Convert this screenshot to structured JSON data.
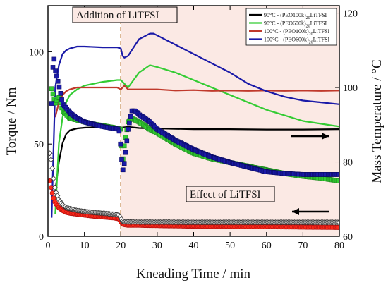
{
  "chart_data": {
    "type": "scatter",
    "xlabel": "Kneading Time / min",
    "ylabel_left": "Torque / Nm",
    "ylabel_right": "Mass Temperature / °C",
    "xlim": [
      0,
      80
    ],
    "ylim_left": [
      0,
      125
    ],
    "ylim_right": [
      60,
      122
    ],
    "xticks": [
      0,
      10,
      20,
      30,
      40,
      50,
      60,
      70,
      80
    ],
    "yticks_left": [
      0,
      50,
      100
    ],
    "yticks_right": [
      60,
      80,
      100,
      120
    ],
    "addition_time": 20,
    "annotations": [
      {
        "text": "Addition of LiTFSI",
        "x": 7,
        "y": 118
      },
      {
        "text": "Effect of LiTFSI",
        "x": 37,
        "y": 22
      }
    ],
    "arrows": [
      {
        "direction": "right",
        "axis": "temperature"
      },
      {
        "direction": "left",
        "axis": "torque"
      }
    ],
    "legend_placement": "top-right",
    "series": [
      {
        "name": "90°C - (PEO100k)20LiTFSI",
        "legend_main": "90°C - (PEO100k)",
        "legend_sub": "20",
        "legend_tail": "LiTFSI",
        "color": "#000000",
        "temperature": {
          "x": [
            2,
            3,
            4,
            5,
            6,
            8,
            10,
            12,
            15,
            18,
            20,
            22,
            25,
            30,
            35,
            40,
            50,
            60,
            70,
            80
          ],
          "y": [
            72,
            80,
            85,
            87.5,
            88.5,
            89,
            89.2,
            89.3,
            89.3,
            89.2,
            89.2,
            89.4,
            89.1,
            89,
            88.9,
            88.8,
            88.8,
            88.7,
            88.7,
            88.8
          ]
        },
        "torque": {
          "x": [
            0.5,
            1,
            1.5,
            2,
            3,
            4,
            5,
            6,
            8,
            10,
            12,
            15,
            18,
            19.5,
            20.5,
            22,
            25,
            30,
            40,
            50,
            60,
            70,
            80
          ],
          "y": [
            45,
            40,
            32,
            25,
            20,
            17,
            15.5,
            15,
            14,
            13.5,
            13,
            12.5,
            12,
            11.5,
            8,
            7.8,
            7.7,
            7.7,
            7.6,
            7.6,
            7.6,
            7.6,
            7.6
          ]
        }
      },
      {
        "name": "90°C - (PEO600k)20LiTFSI",
        "legend_main": "90°C - (PEO600k)",
        "legend_sub": "20",
        "legend_tail": "LiTFSI",
        "color": "#33cc33",
        "temperature": {
          "x": [
            2,
            3,
            4,
            5,
            6,
            8,
            10,
            15,
            19,
            20,
            21,
            22,
            25,
            28,
            30,
            35,
            40,
            50,
            60,
            70,
            80
          ],
          "y": [
            66,
            85,
            92,
            96,
            98,
            99.5,
            100.5,
            101.5,
            102,
            102,
            101,
            100,
            104,
            106,
            105.5,
            104,
            102,
            98,
            94,
            91,
            89.5
          ]
        },
        "torque": {
          "x": [
            1,
            1.5,
            2,
            3,
            4,
            6,
            8,
            10,
            12,
            15,
            18,
            20,
            20.5,
            21,
            22,
            23,
            25,
            28,
            30,
            35,
            40,
            45,
            50,
            55,
            60,
            65,
            70,
            75,
            80
          ],
          "y": [
            80,
            76,
            72,
            76,
            68,
            64,
            63,
            62,
            61,
            60,
            59,
            58,
            40,
            50,
            62,
            64,
            62,
            58,
            56,
            50,
            45,
            42,
            40,
            38,
            36,
            34,
            32.5,
            31.5,
            30
          ]
        }
      },
      {
        "name": "100°C - (PEO100k)20LiTFSI",
        "legend_main": "100°C - (PEO100k)",
        "legend_sub": "20",
        "legend_tail": "LiTFSI",
        "color": "#c0392b",
        "temperature": {
          "x": [
            2,
            3,
            4,
            5,
            6,
            8,
            10,
            15,
            19,
            20,
            21,
            22,
            25,
            30,
            35,
            40,
            45,
            50,
            55,
            60,
            65,
            70,
            75,
            80
          ],
          "y": [
            92,
            96,
            98,
            99,
            99.5,
            100,
            100,
            100,
            100,
            99.5,
            100.5,
            99.5,
            99.5,
            99.5,
            99.2,
            99.3,
            99.1,
            99.2,
            99.1,
            99.2,
            99.1,
            99.2,
            99.1,
            99.2
          ]
        },
        "torque": {
          "x": [
            0.5,
            1,
            1.5,
            2,
            3,
            4,
            5,
            6,
            8,
            10,
            12,
            15,
            18,
            19.5,
            20.5,
            22,
            25,
            30,
            40,
            50,
            60,
            70,
            80
          ],
          "y": [
            30,
            25,
            21,
            18,
            15.5,
            14,
            13,
            12.5,
            12,
            11.5,
            11,
            10.5,
            10,
            9.5,
            6.5,
            6,
            6,
            5.8,
            5.5,
            5.3,
            5.2,
            5,
            4.8
          ]
        }
      },
      {
        "name": "100°C - (PEO600k)20LiTFSI",
        "legend_main": "100°C - (PEO600k)",
        "legend_sub": "20",
        "legend_tail": "LiTFSI",
        "color": "#1a1aa8",
        "temperature": {
          "x": [
            1,
            2,
            3,
            4,
            5,
            6,
            8,
            10,
            15,
            19,
            20,
            20.5,
            21,
            22,
            23,
            25,
            27,
            28,
            29,
            30,
            33,
            35,
            40,
            45,
            50,
            55,
            60,
            65,
            70,
            75,
            80
          ],
          "y": [
            65,
            100,
            106,
            109,
            110,
            110.5,
            111,
            111,
            110.8,
            110.8,
            110.5,
            108.5,
            108,
            108.5,
            110,
            113,
            114,
            114.5,
            114.5,
            114,
            112.5,
            111.5,
            109,
            106.5,
            104,
            101,
            99,
            97.5,
            96.5,
            96,
            95.5
          ]
        },
        "torque": {
          "x": [
            1,
            1.5,
            2,
            3,
            4,
            6,
            8,
            10,
            12,
            15,
            18,
            19.5,
            20,
            20.5,
            21,
            22,
            23,
            24,
            25,
            28,
            30,
            35,
            40,
            45,
            50,
            55,
            60,
            65,
            70,
            75,
            80
          ],
          "y": [
            72,
            100,
            90,
            82,
            72,
            67,
            64,
            62,
            61,
            59.5,
            58.5,
            58,
            48,
            35,
            40,
            58,
            68,
            68,
            66,
            62,
            58,
            52,
            47,
            43,
            40,
            37.5,
            35,
            34,
            33.5,
            33.5,
            33.5
          ]
        }
      }
    ]
  }
}
